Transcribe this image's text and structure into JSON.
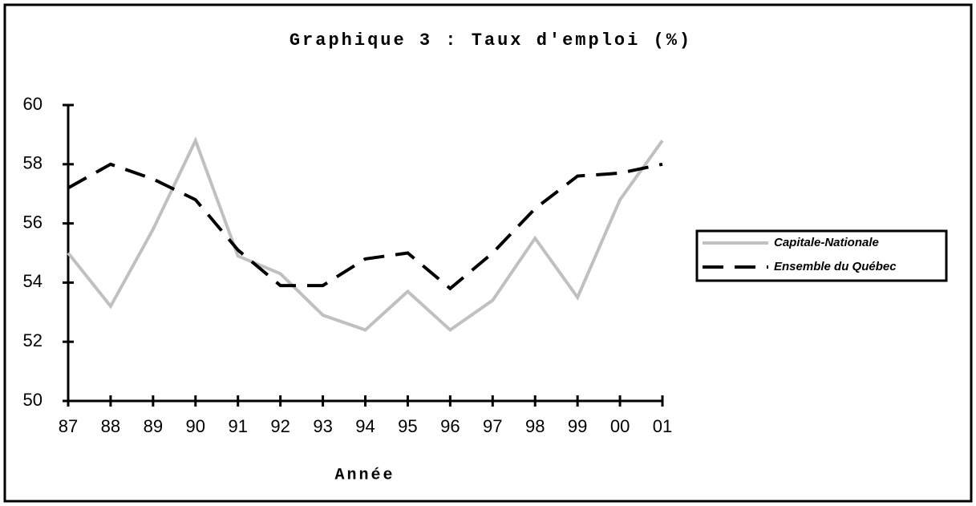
{
  "chart_data": {
    "type": "line",
    "title": "Graphique 3 : Taux d'emploi (%)",
    "x_label": "Année",
    "categories": [
      "87",
      "88",
      "89",
      "90",
      "91",
      "92",
      "93",
      "94",
      "95",
      "96",
      "97",
      "98",
      "99",
      "00",
      "01"
    ],
    "series": [
      {
        "name": "Capitale-Nationale",
        "color": "#c0c0c0",
        "style": "solid",
        "values": [
          55.0,
          53.2,
          55.8,
          58.8,
          54.9,
          54.3,
          52.9,
          52.4,
          53.7,
          52.4,
          53.4,
          55.5,
          53.5,
          56.8,
          58.8
        ]
      },
      {
        "name": "Ensemble du Québec",
        "color": "#000000",
        "style": "dashed",
        "values": [
          57.2,
          58.0,
          57.5,
          56.8,
          55.1,
          53.9,
          53.9,
          54.8,
          55.0,
          53.8,
          55.0,
          56.5,
          57.6,
          57.7,
          58.0
        ]
      }
    ],
    "ylim": [
      50,
      60
    ],
    "yticks": [
      50,
      52,
      54,
      56,
      58,
      60
    ],
    "grid": false,
    "legend": "right"
  }
}
